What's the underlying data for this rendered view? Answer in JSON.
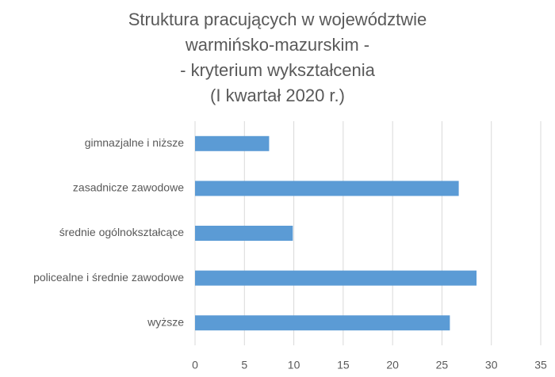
{
  "chart_data": {
    "type": "bar",
    "orientation": "horizontal",
    "title": [
      "Struktura pracujących w województwie",
      "warmińsko-mazurskim -",
      "-  kryterium wykształcenia",
      "(I kwartał 2020 r.)"
    ],
    "categories": [
      "gimnazjalne i niższe",
      "zasadnicze zawodowe",
      "średnie ogólnokształcące",
      "policealne i średnie zawodowe",
      "wyższe"
    ],
    "values": [
      7.5,
      26.7,
      9.9,
      28.5,
      25.8
    ],
    "color": "#5b9bd5",
    "xlim": [
      0,
      35
    ],
    "xticks": [
      0,
      5,
      10,
      15,
      20,
      25,
      30,
      35
    ],
    "grid": true
  }
}
